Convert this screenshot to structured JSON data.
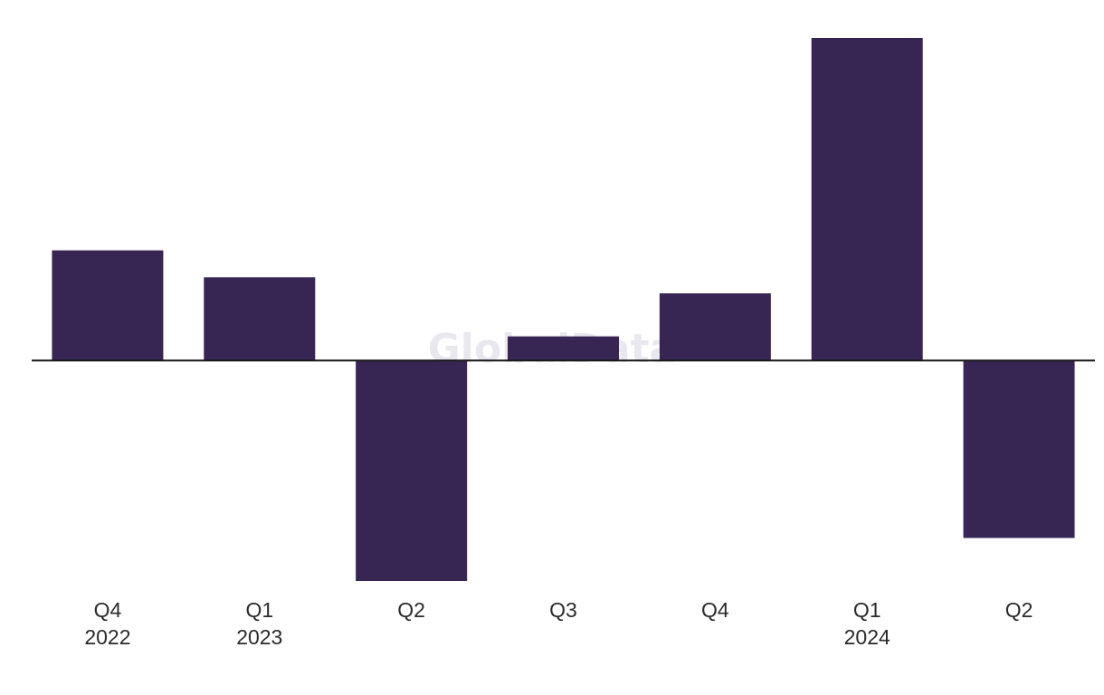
{
  "watermark": "GlobalData",
  "chart_data": {
    "type": "bar",
    "categories": [
      {
        "quarter": "Q4",
        "year": "2022"
      },
      {
        "quarter": "Q1",
        "year": "2023"
      },
      {
        "quarter": "Q2",
        "year": ""
      },
      {
        "quarter": "Q3",
        "year": ""
      },
      {
        "quarter": "Q4",
        "year": ""
      },
      {
        "quarter": "Q1",
        "year": "2024"
      },
      {
        "quarter": "Q2",
        "year": ""
      }
    ],
    "values": [
      4.1,
      3.1,
      -8.2,
      0.9,
      2.5,
      12.0,
      -6.6
    ],
    "ylim": [
      -8.2,
      12.0
    ],
    "grid": false,
    "zero_line": true,
    "bar_color": "#372554",
    "axis_color": "#1a1a1a"
  }
}
